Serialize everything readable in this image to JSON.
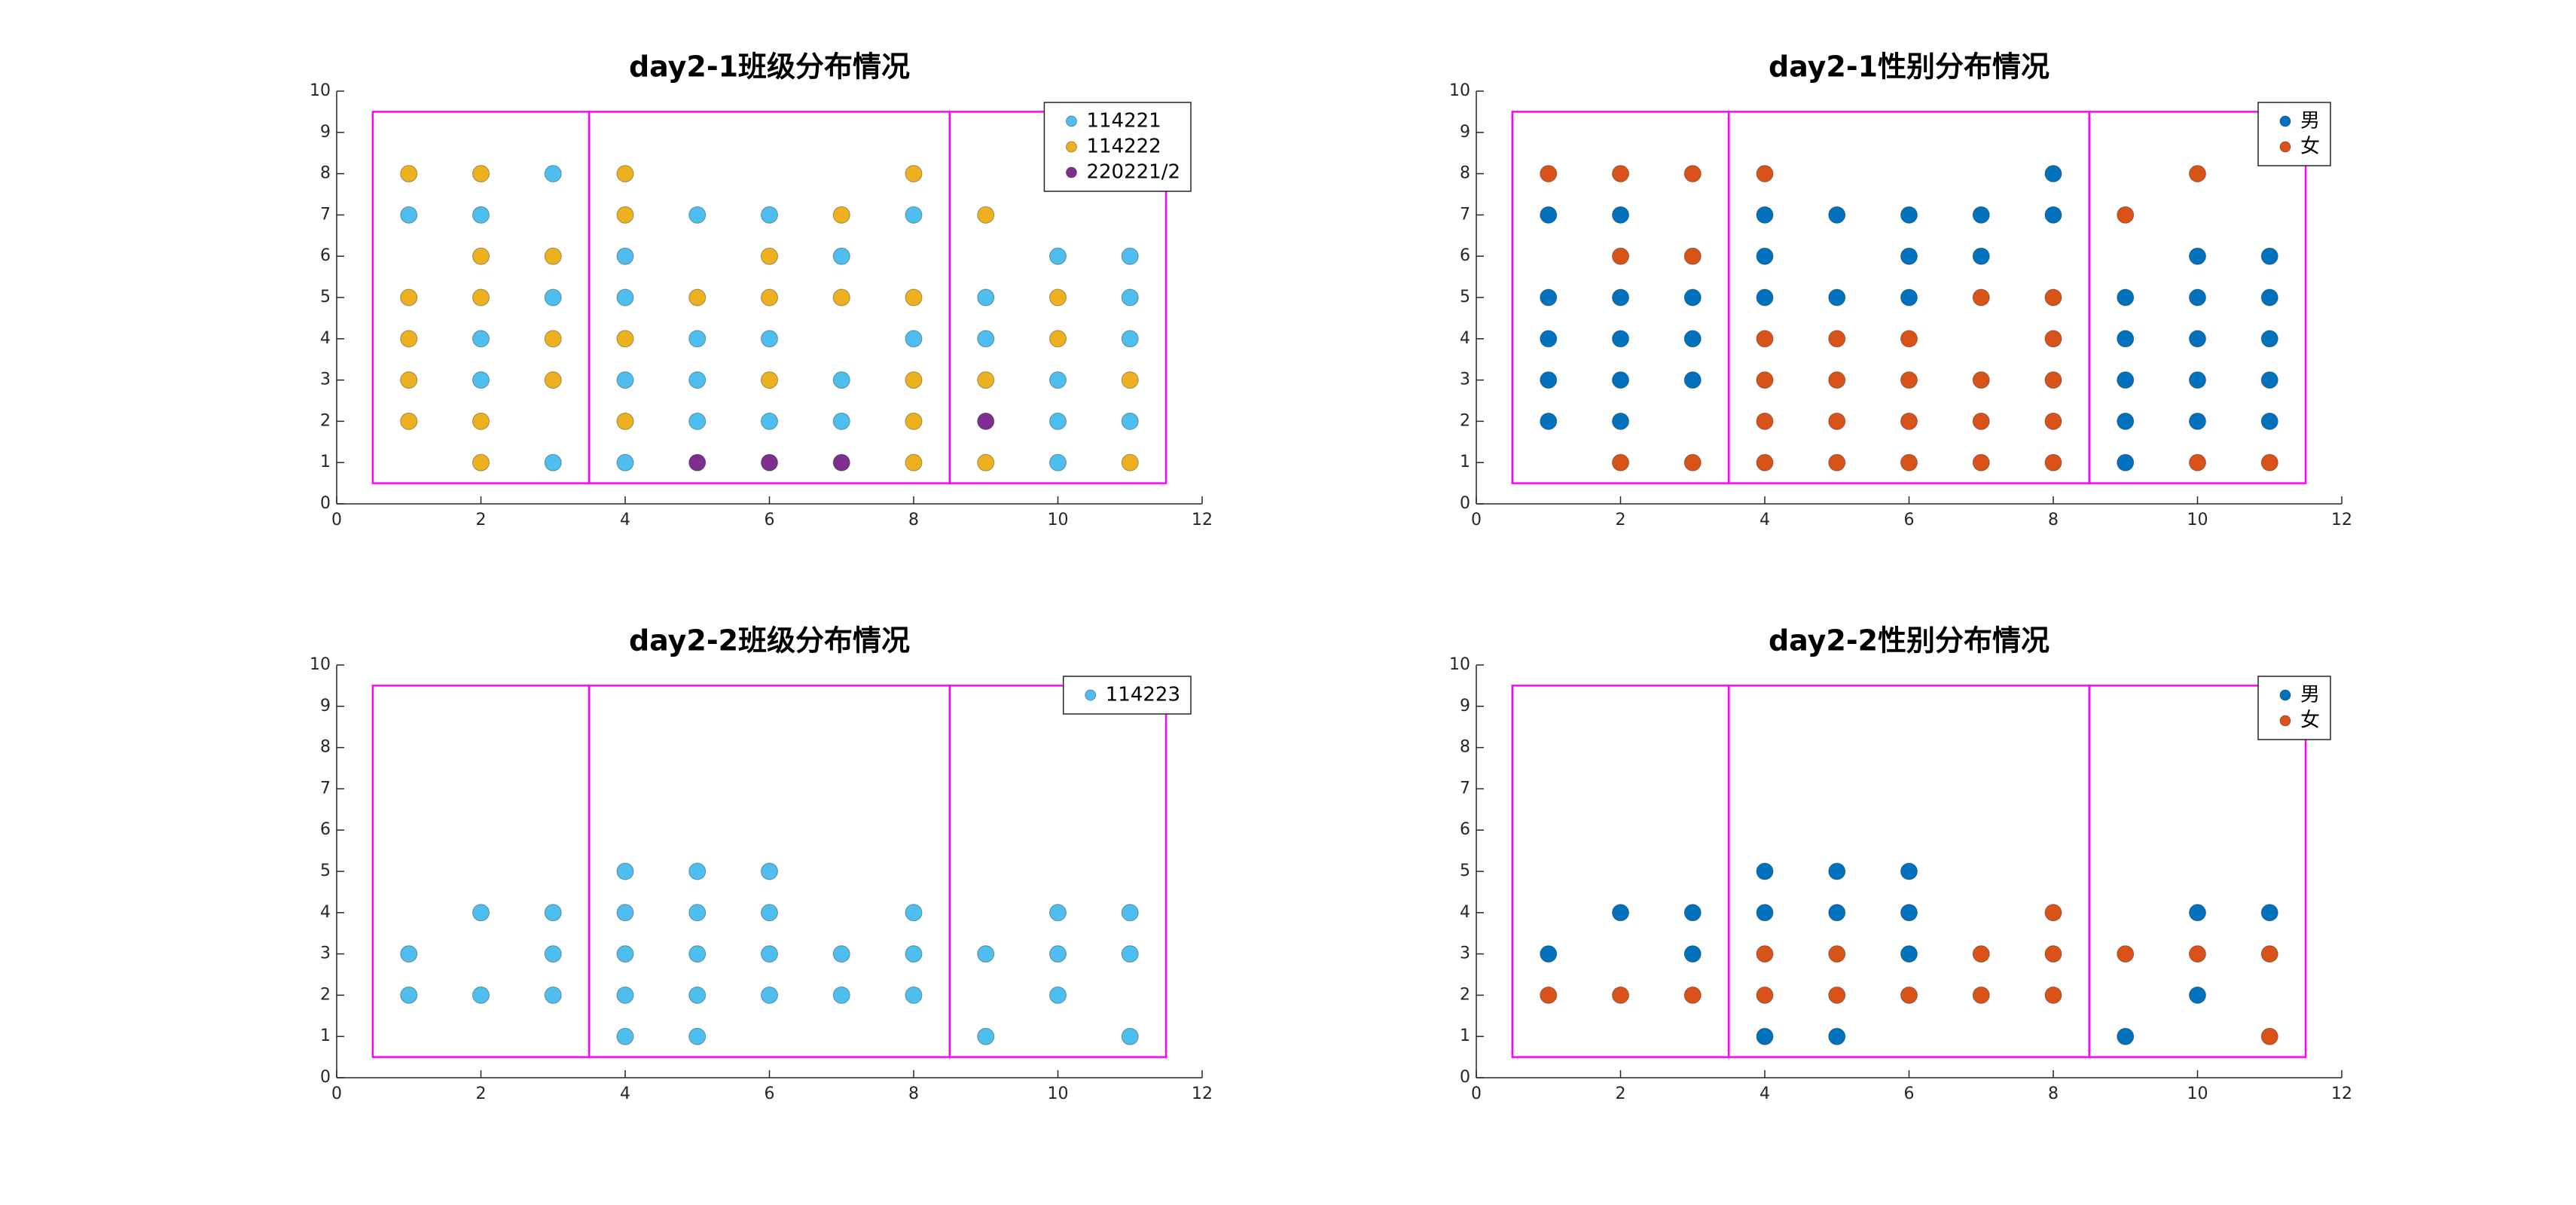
{
  "chart_data": [
    {
      "type": "scatter",
      "title": "day2-1班级分布情况",
      "xlim": [
        0,
        12
      ],
      "ylim": [
        0,
        10
      ],
      "xticks": [
        0,
        2,
        4,
        6,
        8,
        10,
        12
      ],
      "yticks": [
        0,
        1,
        2,
        3,
        4,
        5,
        6,
        7,
        8,
        9,
        10
      ],
      "legend": "northeast",
      "box_color": "#ff00ff",
      "boxes": [
        {
          "x": [
            0.5,
            3.5
          ],
          "y": [
            0.5,
            9.5
          ]
        },
        {
          "x": [
            3.5,
            8.5
          ],
          "y": [
            0.5,
            9.5
          ]
        },
        {
          "x": [
            8.5,
            11.5
          ],
          "y": [
            0.5,
            9.5
          ]
        }
      ],
      "series": [
        {
          "name": "114221",
          "color": "#4dbeee",
          "x": [
            1,
            2,
            2,
            2,
            3,
            3,
            3,
            4,
            4,
            4,
            4,
            5,
            5,
            5,
            5,
            6,
            6,
            6,
            7,
            7,
            7,
            8,
            8,
            9,
            9,
            10,
            10,
            10,
            10,
            11,
            11,
            11,
            11
          ],
          "y": [
            7,
            7,
            4,
            3,
            8,
            5,
            1,
            6,
            5,
            3,
            1,
            7,
            4,
            3,
            2,
            7,
            4,
            2,
            6,
            3,
            2,
            7,
            4,
            5,
            4,
            6,
            3,
            2,
            1,
            6,
            5,
            4,
            2
          ]
        },
        {
          "name": "114222",
          "color": "#edb120",
          "x": [
            1,
            1,
            1,
            1,
            1,
            2,
            2,
            2,
            2,
            2,
            3,
            3,
            3,
            4,
            4,
            4,
            4,
            5,
            6,
            6,
            6,
            7,
            7,
            8,
            8,
            8,
            8,
            8,
            9,
            9,
            9,
            10,
            10,
            11,
            11
          ],
          "y": [
            8,
            5,
            4,
            3,
            2,
            8,
            6,
            5,
            2,
            1,
            6,
            4,
            3,
            8,
            7,
            4,
            2,
            5,
            6,
            5,
            3,
            7,
            5,
            8,
            5,
            3,
            2,
            1,
            7,
            3,
            1,
            5,
            4,
            3,
            1
          ]
        },
        {
          "name": "220221/2",
          "color": "#7e2f8e",
          "x": [
            5,
            6,
            7,
            9
          ],
          "y": [
            1,
            1,
            1,
            2
          ]
        }
      ]
    },
    {
      "type": "scatter",
      "title": "day2-1性别分布情况",
      "xlim": [
        0,
        12
      ],
      "ylim": [
        0,
        10
      ],
      "xticks": [
        0,
        2,
        4,
        6,
        8,
        10,
        12
      ],
      "yticks": [
        0,
        1,
        2,
        3,
        4,
        5,
        6,
        7,
        8,
        9,
        10
      ],
      "legend": "northeast",
      "box_color": "#ff00ff",
      "boxes": [
        {
          "x": [
            0.5,
            3.5
          ],
          "y": [
            0.5,
            9.5
          ]
        },
        {
          "x": [
            3.5,
            8.5
          ],
          "y": [
            0.5,
            9.5
          ]
        },
        {
          "x": [
            8.5,
            11.5
          ],
          "y": [
            0.5,
            9.5
          ]
        }
      ],
      "series": [
        {
          "name": "男",
          "color": "#0072bd",
          "x": [
            1,
            1,
            1,
            1,
            1,
            2,
            2,
            2,
            2,
            2,
            3,
            3,
            3,
            4,
            4,
            4,
            5,
            5,
            6,
            6,
            6,
            7,
            7,
            8,
            8,
            9,
            9,
            9,
            9,
            9,
            10,
            10,
            10,
            10,
            10,
            11,
            11,
            11,
            11,
            11
          ],
          "y": [
            7,
            5,
            4,
            3,
            2,
            7,
            5,
            4,
            3,
            2,
            5,
            4,
            3,
            7,
            6,
            5,
            7,
            5,
            7,
            6,
            5,
            7,
            6,
            8,
            7,
            5,
            4,
            3,
            2,
            1,
            6,
            5,
            4,
            3,
            2,
            6,
            5,
            4,
            3,
            2
          ]
        },
        {
          "name": "女",
          "color": "#d95319",
          "x": [
            1,
            2,
            2,
            2,
            3,
            3,
            3,
            4,
            4,
            4,
            4,
            4,
            5,
            5,
            5,
            5,
            6,
            6,
            6,
            6,
            7,
            7,
            7,
            7,
            8,
            8,
            8,
            8,
            8,
            9,
            10,
            10,
            11
          ],
          "y": [
            8,
            8,
            6,
            1,
            8,
            6,
            1,
            8,
            4,
            3,
            2,
            1,
            4,
            3,
            2,
            1,
            4,
            3,
            2,
            1,
            5,
            3,
            2,
            1,
            5,
            4,
            3,
            2,
            1,
            7,
            8,
            1,
            1
          ]
        }
      ]
    },
    {
      "type": "scatter",
      "title": "day2-2班级分布情况",
      "xlim": [
        0,
        12
      ],
      "ylim": [
        0,
        10
      ],
      "xticks": [
        0,
        2,
        4,
        6,
        8,
        10,
        12
      ],
      "yticks": [
        0,
        1,
        2,
        3,
        4,
        5,
        6,
        7,
        8,
        9,
        10
      ],
      "legend": "northeast",
      "box_color": "#ff00ff",
      "boxes": [
        {
          "x": [
            0.5,
            3.5
          ],
          "y": [
            0.5,
            9.5
          ]
        },
        {
          "x": [
            3.5,
            8.5
          ],
          "y": [
            0.5,
            9.5
          ]
        },
        {
          "x": [
            8.5,
            11.5
          ],
          "y": [
            0.5,
            9.5
          ]
        }
      ],
      "series": [
        {
          "name": "114223",
          "color": "#4dbeee",
          "x": [
            1,
            1,
            2,
            2,
            3,
            3,
            3,
            4,
            4,
            4,
            4,
            4,
            5,
            5,
            5,
            5,
            5,
            6,
            6,
            6,
            6,
            7,
            7,
            8,
            8,
            8,
            9,
            9,
            10,
            10,
            10,
            11,
            11,
            11
          ],
          "y": [
            3,
            2,
            4,
            2,
            4,
            3,
            2,
            5,
            4,
            3,
            2,
            1,
            5,
            4,
            3,
            2,
            1,
            5,
            4,
            3,
            2,
            3,
            2,
            4,
            3,
            2,
            3,
            1,
            4,
            3,
            2,
            4,
            3,
            1
          ]
        }
      ]
    },
    {
      "type": "scatter",
      "title": "day2-2性别分布情况",
      "xlim": [
        0,
        12
      ],
      "ylim": [
        0,
        10
      ],
      "xticks": [
        0,
        2,
        4,
        6,
        8,
        10,
        12
      ],
      "yticks": [
        0,
        1,
        2,
        3,
        4,
        5,
        6,
        7,
        8,
        9,
        10
      ],
      "legend": "northeast",
      "box_color": "#ff00ff",
      "boxes": [
        {
          "x": [
            0.5,
            3.5
          ],
          "y": [
            0.5,
            9.5
          ]
        },
        {
          "x": [
            3.5,
            8.5
          ],
          "y": [
            0.5,
            9.5
          ]
        },
        {
          "x": [
            8.5,
            11.5
          ],
          "y": [
            0.5,
            9.5
          ]
        }
      ],
      "series": [
        {
          "name": "男",
          "color": "#0072bd",
          "x": [
            1,
            2,
            3,
            3,
            4,
            4,
            4,
            5,
            5,
            5,
            6,
            6,
            6,
            9,
            10,
            10,
            11
          ],
          "y": [
            3,
            4,
            4,
            3,
            5,
            4,
            1,
            5,
            4,
            1,
            5,
            4,
            3,
            1,
            4,
            2,
            4
          ]
        },
        {
          "name": "女",
          "color": "#d95319",
          "x": [
            1,
            2,
            3,
            4,
            4,
            5,
            5,
            6,
            7,
            7,
            8,
            8,
            8,
            9,
            10,
            11,
            11
          ],
          "y": [
            2,
            2,
            2,
            3,
            2,
            3,
            2,
            2,
            3,
            2,
            4,
            3,
            2,
            3,
            3,
            3,
            1
          ]
        }
      ]
    }
  ]
}
